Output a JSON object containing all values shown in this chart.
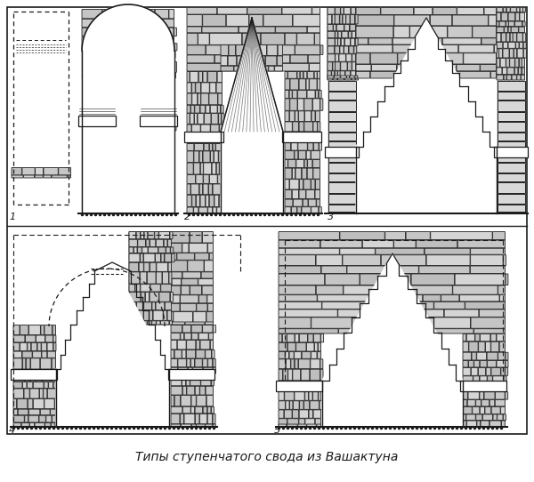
{
  "title": "Типы ступенчатого свода из Вашактуна",
  "bg_color": "#ffffff",
  "line_color": "#1a1a1a",
  "stone_fill": "#c8c8c8",
  "stone_edge": "#222222",
  "fig_width": 6.0,
  "fig_height": 5.42,
  "dpi": 100
}
